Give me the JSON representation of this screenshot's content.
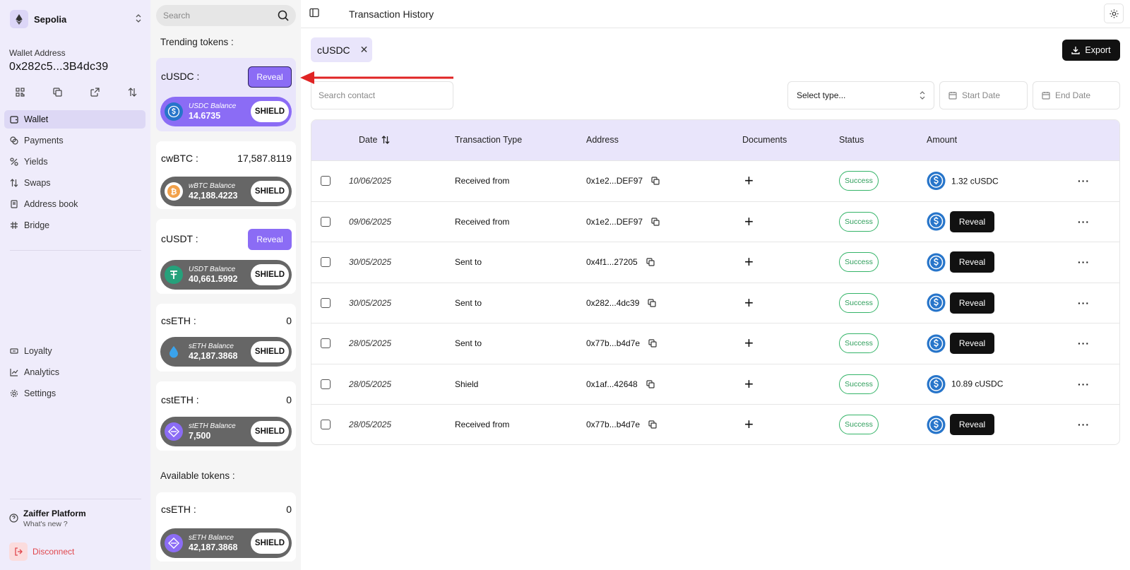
{
  "network": {
    "name": "Sepolia"
  },
  "wallet": {
    "label": "Wallet Address",
    "address": "0x282c5...3B4dc39"
  },
  "nav": {
    "top": [
      {
        "label": "Wallet",
        "icon": "wallet-icon"
      },
      {
        "label": "Payments",
        "icon": "coins-icon"
      },
      {
        "label": "Yields",
        "icon": "percent-icon"
      },
      {
        "label": "Swaps",
        "icon": "swap-icon"
      },
      {
        "label": "Address book",
        "icon": "book-icon"
      },
      {
        "label": "Bridge",
        "icon": "bridge-icon"
      }
    ],
    "bottom": [
      {
        "label": "Loyalty",
        "icon": "ticket-icon"
      },
      {
        "label": "Analytics",
        "icon": "chart-icon"
      },
      {
        "label": "Settings",
        "icon": "gear-icon"
      }
    ]
  },
  "platform": {
    "title": "Zaiffer Platform",
    "subtitle": "What's new ?"
  },
  "disconnect": "Disconnect",
  "tokens_panel": {
    "search_placeholder": "Search",
    "trending_title": "Trending tokens :",
    "available_title": "Available tokens :",
    "shield_label": "SHIELD",
    "reveal_label": "Reveal",
    "trending": [
      {
        "name": "cUSDC :",
        "value": "",
        "reveal": true,
        "balance_label": "USDC Balance",
        "balance": "14.6735"
      },
      {
        "name": "cwBTC :",
        "value": "17,587.8119",
        "reveal": false,
        "balance_label": "wBTC Balance",
        "balance": "42,188.4223"
      },
      {
        "name": "cUSDT :",
        "value": "",
        "reveal": true,
        "balance_label": "USDT Balance",
        "balance": "40,661.5992"
      },
      {
        "name": "csETH :",
        "value": "0",
        "reveal": false,
        "balance_label": "sETH Balance",
        "balance": "42,187.3868"
      },
      {
        "name": "cstETH :",
        "value": "0",
        "reveal": false,
        "balance_label": "stETH Balance",
        "balance": "7,500"
      }
    ],
    "available": [
      {
        "name": "csETH :",
        "value": "0",
        "balance_label": "sETH Balance",
        "balance": "42,187.3868"
      }
    ]
  },
  "header": {
    "title": "Transaction History"
  },
  "filter_chip": "cUSDC",
  "export_label": "Export",
  "filters": {
    "contact_placeholder": "Search contact",
    "type_placeholder": "Select type...",
    "start_date": "Start Date",
    "end_date": "End Date"
  },
  "table": {
    "columns": [
      "Date",
      "Transaction Type",
      "Address",
      "Documents",
      "Status",
      "Amount"
    ],
    "reveal_label": "Reveal",
    "rows": [
      {
        "date": "10/06/2025",
        "type": "Received from",
        "address": "0x1e2...DEF97",
        "status": "Success",
        "amount": "1.32 cUSDC"
      },
      {
        "date": "09/06/2025",
        "type": "Received from",
        "address": "0x1e2...DEF97",
        "status": "Success",
        "amount": ""
      },
      {
        "date": "30/05/2025",
        "type": "Sent to",
        "address": "0x4f1...27205",
        "status": "Success",
        "amount": ""
      },
      {
        "date": "30/05/2025",
        "type": "Sent to",
        "address": "0x282...4dc39",
        "status": "Success",
        "amount": ""
      },
      {
        "date": "28/05/2025",
        "type": "Sent to",
        "address": "0x77b...b4d7e",
        "status": "Success",
        "amount": ""
      },
      {
        "date": "28/05/2025",
        "type": "Shield",
        "address": "0x1af...42648",
        "status": "Success",
        "amount": "10.89 cUSDC"
      },
      {
        "date": "28/05/2025",
        "type": "Received from",
        "address": "0x77b...b4d7e",
        "status": "Success",
        "amount": ""
      }
    ]
  },
  "colors": {
    "accent": "#8b6cf5",
    "sidebar_bg": "#efecfb",
    "success": "#34b468",
    "danger": "#e0464c",
    "annotation_arrow": "#e02424"
  }
}
